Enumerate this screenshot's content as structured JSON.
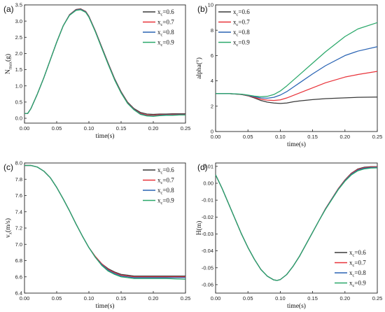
{
  "colors": {
    "s06": "#3a3a3a",
    "s07": "#e8333a",
    "s08": "#2a64b4",
    "s09": "#2aa86a"
  },
  "chart_data": [
    {
      "panel": "(a)",
      "type": "line",
      "xlabel": "time(s)",
      "ylabel": "N",
      "ylabel_sub": "max",
      "ylabel_tail": "(g)",
      "xlim": [
        0,
        0.25
      ],
      "ylim": [
        -0.15,
        3.5
      ],
      "xticks": [
        0.0,
        0.05,
        0.1,
        0.15,
        0.2,
        0.25
      ],
      "xtick_labels": [
        "0.00",
        "0.05",
        "0.10",
        "0.15",
        "0.20",
        "0.25"
      ],
      "yticks": [
        0.0,
        0.5,
        1.0,
        1.5,
        2.0,
        2.5,
        3.0,
        3.5
      ],
      "ytick_labels": [
        "0.0",
        "0.5",
        "1.0",
        "1.5",
        "2.0",
        "2.5",
        "3.0",
        "3.5"
      ],
      "legend_position": "top-right",
      "x": [
        0.0,
        0.005,
        0.01,
        0.02,
        0.03,
        0.04,
        0.05,
        0.06,
        0.07,
        0.08,
        0.087,
        0.095,
        0.1,
        0.11,
        0.12,
        0.13,
        0.14,
        0.15,
        0.16,
        0.17,
        0.18,
        0.19,
        0.2,
        0.21,
        0.22,
        0.23,
        0.24,
        0.25
      ],
      "series": [
        {
          "name": "x",
          "sub": "c",
          "suffix": "=0.6",
          "color": "s06",
          "values": [
            0.15,
            0.15,
            0.3,
            0.75,
            1.25,
            1.8,
            2.35,
            2.85,
            3.2,
            3.36,
            3.38,
            3.3,
            3.15,
            2.7,
            2.2,
            1.7,
            1.22,
            0.82,
            0.5,
            0.3,
            0.18,
            0.13,
            0.12,
            0.13,
            0.13,
            0.14,
            0.14,
            0.14
          ]
        },
        {
          "name": "x",
          "sub": "c",
          "suffix": "=0.7",
          "color": "s07",
          "values": [
            0.15,
            0.15,
            0.3,
            0.75,
            1.25,
            1.8,
            2.35,
            2.85,
            3.2,
            3.35,
            3.37,
            3.29,
            3.14,
            2.69,
            2.18,
            1.68,
            1.2,
            0.8,
            0.48,
            0.28,
            0.15,
            0.1,
            0.09,
            0.11,
            0.11,
            0.12,
            0.12,
            0.12
          ]
        },
        {
          "name": "x",
          "sub": "c",
          "suffix": "=0.8",
          "color": "s08",
          "values": [
            0.15,
            0.15,
            0.3,
            0.75,
            1.25,
            1.8,
            2.35,
            2.85,
            3.19,
            3.34,
            3.36,
            3.28,
            3.13,
            2.68,
            2.17,
            1.67,
            1.19,
            0.79,
            0.47,
            0.27,
            0.13,
            0.08,
            0.07,
            0.09,
            0.1,
            0.1,
            0.11,
            0.11
          ]
        },
        {
          "name": "x",
          "sub": "c",
          "suffix": "=0.9",
          "color": "s09",
          "values": [
            0.15,
            0.15,
            0.3,
            0.75,
            1.25,
            1.8,
            2.35,
            2.85,
            3.18,
            3.33,
            3.35,
            3.27,
            3.12,
            2.67,
            2.16,
            1.66,
            1.18,
            0.78,
            0.46,
            0.26,
            0.12,
            0.07,
            0.06,
            0.08,
            0.09,
            0.09,
            0.1,
            0.1
          ]
        }
      ]
    },
    {
      "panel": "(b)",
      "type": "line",
      "xlabel": "time(s)",
      "ylabel": "alpha(°)",
      "ylabel_sub": "",
      "ylabel_tail": "",
      "xlim": [
        0,
        0.25
      ],
      "ylim": [
        0,
        10
      ],
      "xticks": [
        0.0,
        0.05,
        0.1,
        0.15,
        0.2,
        0.25
      ],
      "xtick_labels": [
        "0.00",
        "0.05",
        "0.10",
        "0.15",
        "0.20",
        "0.25"
      ],
      "yticks": [
        0,
        2,
        4,
        6,
        8,
        10
      ],
      "ytick_labels": [
        "0",
        "2",
        "4",
        "6",
        "8",
        "10"
      ],
      "legend_position": "top-left",
      "x": [
        0.0,
        0.02,
        0.04,
        0.05,
        0.06,
        0.07,
        0.08,
        0.09,
        0.1,
        0.11,
        0.12,
        0.13,
        0.15,
        0.17,
        0.2,
        0.22,
        0.25
      ],
      "series": [
        {
          "name": "x",
          "sub": "c",
          "suffix": "=0.6",
          "color": "s06",
          "values": [
            3.0,
            3.0,
            2.92,
            2.82,
            2.65,
            2.45,
            2.32,
            2.25,
            2.22,
            2.25,
            2.35,
            2.42,
            2.52,
            2.6,
            2.66,
            2.7,
            2.72
          ]
        },
        {
          "name": "x",
          "sub": "c",
          "suffix": "=0.7",
          "color": "s07",
          "values": [
            3.0,
            3.0,
            2.93,
            2.84,
            2.7,
            2.55,
            2.48,
            2.45,
            2.5,
            2.65,
            2.85,
            3.05,
            3.45,
            3.85,
            4.3,
            4.5,
            4.75
          ]
        },
        {
          "name": "x",
          "sub": "c",
          "suffix": "=0.8",
          "color": "s08",
          "values": [
            3.0,
            3.0,
            2.94,
            2.86,
            2.75,
            2.65,
            2.63,
            2.7,
            2.88,
            3.15,
            3.5,
            3.85,
            4.55,
            5.2,
            6.0,
            6.35,
            6.7
          ]
        },
        {
          "name": "x",
          "sub": "c",
          "suffix": "=0.9",
          "color": "s09",
          "values": [
            3.0,
            3.0,
            2.95,
            2.88,
            2.8,
            2.75,
            2.78,
            2.92,
            3.2,
            3.6,
            4.05,
            4.5,
            5.4,
            6.3,
            7.5,
            8.1,
            8.6
          ]
        }
      ]
    },
    {
      "panel": "(c)",
      "type": "line",
      "xlabel": "time(s)",
      "ylabel": "v",
      "ylabel_sub": "x",
      "ylabel_tail": "(m/s)",
      "xlim": [
        0,
        0.25
      ],
      "ylim": [
        6.4,
        8.0
      ],
      "xticks": [
        0.0,
        0.05,
        0.1,
        0.15,
        0.2,
        0.25
      ],
      "xtick_labels": [
        "0.00",
        "0.05",
        "0.10",
        "0.15",
        "0.20",
        "0.25"
      ],
      "yticks": [
        6.4,
        6.6,
        6.8,
        7.0,
        7.2,
        7.4,
        7.6,
        7.8,
        8.0
      ],
      "ytick_labels": [
        "6.4",
        "6.6",
        "6.8",
        "7.0",
        "7.2",
        "7.4",
        "7.6",
        "7.8",
        "8.0"
      ],
      "legend_position": "top-right",
      "x": [
        0.0,
        0.01,
        0.02,
        0.03,
        0.04,
        0.05,
        0.06,
        0.07,
        0.08,
        0.09,
        0.1,
        0.11,
        0.12,
        0.13,
        0.14,
        0.15,
        0.16,
        0.17,
        0.18,
        0.19,
        0.2,
        0.22,
        0.25
      ],
      "series": [
        {
          "name": "x",
          "sub": "c",
          "suffix": "=0.6",
          "color": "s06",
          "values": [
            7.97,
            7.97,
            7.95,
            7.9,
            7.82,
            7.7,
            7.56,
            7.41,
            7.25,
            7.1,
            6.96,
            6.85,
            6.76,
            6.7,
            6.66,
            6.63,
            6.62,
            6.61,
            6.61,
            6.61,
            6.61,
            6.61,
            6.61
          ]
        },
        {
          "name": "x",
          "sub": "c",
          "suffix": "=0.7",
          "color": "s07",
          "values": [
            7.97,
            7.97,
            7.95,
            7.9,
            7.82,
            7.7,
            7.56,
            7.41,
            7.25,
            7.1,
            6.96,
            6.85,
            6.76,
            6.69,
            6.65,
            6.62,
            6.61,
            6.6,
            6.6,
            6.6,
            6.6,
            6.6,
            6.6
          ]
        },
        {
          "name": "x",
          "sub": "c",
          "suffix": "=0.8",
          "color": "s08",
          "values": [
            7.97,
            7.97,
            7.95,
            7.9,
            7.82,
            7.7,
            7.56,
            7.41,
            7.25,
            7.1,
            6.96,
            6.84,
            6.75,
            6.68,
            6.64,
            6.61,
            6.6,
            6.59,
            6.59,
            6.59,
            6.59,
            6.59,
            6.59
          ]
        },
        {
          "name": "x",
          "sub": "c",
          "suffix": "=0.9",
          "color": "s09",
          "values": [
            7.97,
            7.97,
            7.95,
            7.9,
            7.82,
            7.7,
            7.56,
            7.41,
            7.25,
            7.1,
            6.96,
            6.84,
            6.74,
            6.67,
            6.63,
            6.6,
            6.59,
            6.58,
            6.58,
            6.58,
            6.58,
            6.58,
            6.57
          ]
        }
      ]
    },
    {
      "panel": "(d)",
      "type": "line",
      "xlabel": "time(s)",
      "ylabel": "H(m)",
      "ylabel_sub": "",
      "ylabel_tail": "",
      "xlim": [
        0,
        0.25
      ],
      "ylim": [
        -0.065,
        0.012
      ],
      "xticks": [
        0.0,
        0.05,
        0.1,
        0.15,
        0.2,
        0.25
      ],
      "xtick_labels": [
        "0.00",
        "0.05",
        "0.10",
        "0.15",
        "0.20",
        "0.25"
      ],
      "yticks": [
        -0.06,
        -0.05,
        -0.04,
        -0.03,
        -0.02,
        -0.01,
        0.0,
        0.01
      ],
      "ytick_labels": [
        "-0.06",
        "-0.05",
        "-0.04",
        "-0.03",
        "-0.02",
        "-0.01",
        "0.00",
        "0.01"
      ],
      "legend_position": "bottom-right",
      "x": [
        0.0,
        0.01,
        0.02,
        0.03,
        0.04,
        0.05,
        0.06,
        0.07,
        0.08,
        0.09,
        0.095,
        0.1,
        0.11,
        0.12,
        0.13,
        0.14,
        0.15,
        0.16,
        0.17,
        0.18,
        0.19,
        0.2,
        0.21,
        0.22,
        0.23,
        0.24,
        0.25
      ],
      "series": [
        {
          "name": "x",
          "sub": "c",
          "suffix": "=0.6",
          "color": "s06",
          "values": [
            0.005,
            -0.003,
            -0.012,
            -0.021,
            -0.03,
            -0.038,
            -0.045,
            -0.051,
            -0.055,
            -0.0572,
            -0.0575,
            -0.057,
            -0.054,
            -0.049,
            -0.043,
            -0.036,
            -0.029,
            -0.022,
            -0.015,
            -0.009,
            -0.003,
            0.002,
            0.006,
            0.0085,
            0.0095,
            0.0098,
            0.0098
          ]
        },
        {
          "name": "x",
          "sub": "c",
          "suffix": "=0.7",
          "color": "s07",
          "values": [
            0.005,
            -0.003,
            -0.012,
            -0.021,
            -0.03,
            -0.038,
            -0.045,
            -0.051,
            -0.055,
            -0.0572,
            -0.0575,
            -0.057,
            -0.054,
            -0.049,
            -0.043,
            -0.036,
            -0.029,
            -0.022,
            -0.015,
            -0.009,
            -0.003,
            0.0018,
            0.0058,
            0.0082,
            0.0092,
            0.0096,
            0.0097
          ]
        },
        {
          "name": "x",
          "sub": "c",
          "suffix": "=0.8",
          "color": "s08",
          "values": [
            0.005,
            -0.003,
            -0.012,
            -0.021,
            -0.03,
            -0.038,
            -0.045,
            -0.051,
            -0.055,
            -0.0572,
            -0.0575,
            -0.057,
            -0.054,
            -0.049,
            -0.043,
            -0.036,
            -0.029,
            -0.022,
            -0.0152,
            -0.0092,
            -0.0033,
            0.0015,
            0.0054,
            0.0078,
            0.0089,
            0.0093,
            0.0094
          ]
        },
        {
          "name": "x",
          "sub": "c",
          "suffix": "=0.9",
          "color": "s09",
          "values": [
            0.005,
            -0.003,
            -0.012,
            -0.021,
            -0.03,
            -0.038,
            -0.045,
            -0.051,
            -0.055,
            -0.0572,
            -0.0575,
            -0.057,
            -0.054,
            -0.049,
            -0.043,
            -0.036,
            -0.029,
            -0.022,
            -0.0154,
            -0.0095,
            -0.0036,
            0.0012,
            0.005,
            0.0074,
            0.0085,
            0.009,
            0.0091
          ]
        }
      ]
    }
  ]
}
